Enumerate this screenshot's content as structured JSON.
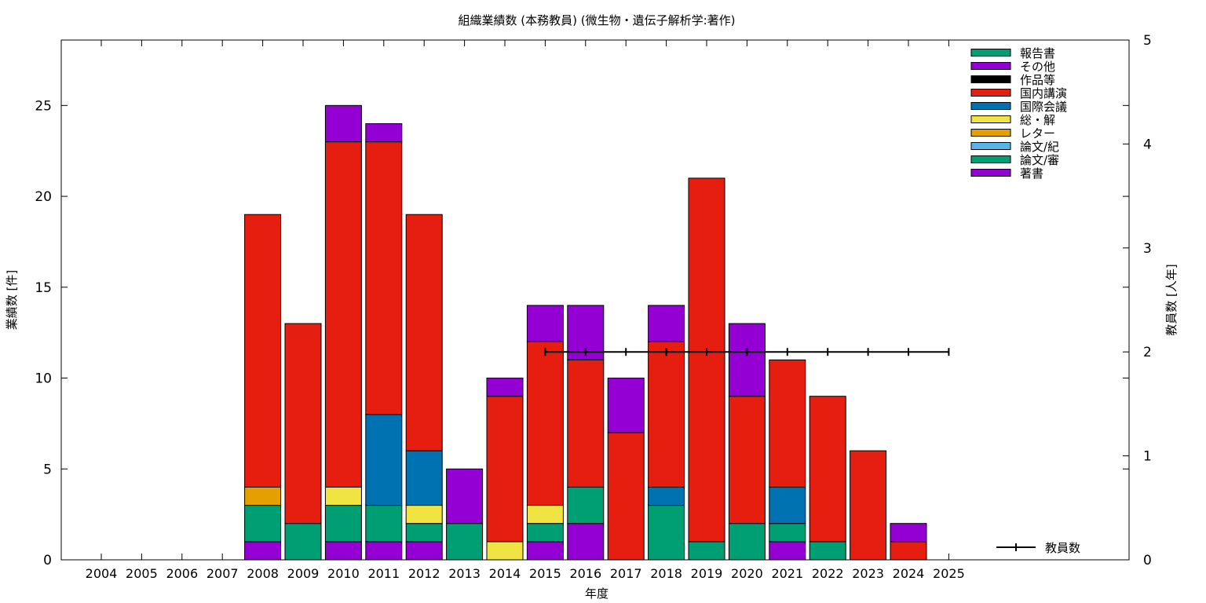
{
  "chart_data": {
    "type": "bar",
    "stacked": true,
    "title": "組織業績数 (本務教員) (微生物・遺伝子解析学:著作)",
    "xlabel": "年度",
    "ylabel": "業績数 [件]",
    "y2label": "教員数 [人年]",
    "ylim": [
      0,
      28.6
    ],
    "y2lim": [
      0,
      5
    ],
    "yticks": [
      0,
      5,
      10,
      15,
      20,
      25
    ],
    "y2ticks": [
      0,
      1,
      2,
      3,
      4,
      5
    ],
    "legend_position": "top-right",
    "categories": [
      "2004",
      "2005",
      "2006",
      "2007",
      "2008",
      "2009",
      "2010",
      "2011",
      "2012",
      "2013",
      "2014",
      "2015",
      "2016",
      "2017",
      "2018",
      "2019",
      "2020",
      "2021",
      "2022",
      "2023",
      "2024",
      "2025"
    ],
    "legend_order": [
      "報告書",
      "その他",
      "作品等",
      "国内講演",
      "国際会議",
      "総・解",
      "レター",
      "論文/紀",
      "論文/審",
      "著書"
    ],
    "series": [
      {
        "name": "著書",
        "color": "#9400d3",
        "values": [
          0,
          0,
          0,
          0,
          1,
          0,
          1,
          1,
          1,
          0,
          0,
          1,
          2,
          0,
          0,
          0,
          0,
          1,
          0,
          0,
          0,
          0
        ]
      },
      {
        "name": "論文/審",
        "color": "#009e73",
        "values": [
          0,
          0,
          0,
          0,
          2,
          2,
          2,
          2,
          1,
          2,
          0,
          1,
          2,
          0,
          3,
          1,
          2,
          1,
          1,
          0,
          0,
          0
        ]
      },
      {
        "name": "論文/紀",
        "color": "#56b4e9",
        "values": [
          0,
          0,
          0,
          0,
          0,
          0,
          0,
          0,
          0,
          0,
          0,
          0,
          0,
          0,
          0,
          0,
          0,
          0,
          0,
          0,
          0,
          0
        ]
      },
      {
        "name": "レター",
        "color": "#e69f00",
        "values": [
          0,
          0,
          0,
          0,
          1,
          0,
          0,
          0,
          0,
          0,
          0,
          0,
          0,
          0,
          0,
          0,
          0,
          0,
          0,
          0,
          0,
          0
        ]
      },
      {
        "name": "総・解",
        "color": "#f0e442",
        "values": [
          0,
          0,
          0,
          0,
          0,
          0,
          1,
          0,
          1,
          0,
          1,
          1,
          0,
          0,
          0,
          0,
          0,
          0,
          0,
          0,
          0,
          0
        ]
      },
      {
        "name": "国際会議",
        "color": "#0072b2",
        "values": [
          0,
          0,
          0,
          0,
          0,
          0,
          0,
          5,
          3,
          0,
          0,
          0,
          0,
          0,
          1,
          0,
          0,
          2,
          0,
          0,
          0,
          0
        ]
      },
      {
        "name": "国内講演",
        "color": "#e51e10",
        "values": [
          0,
          0,
          0,
          0,
          15,
          11,
          19,
          15,
          13,
          0,
          8,
          9,
          7,
          7,
          8,
          20,
          7,
          7,
          8,
          6,
          1,
          0
        ]
      },
      {
        "name": "作品等",
        "color": "#000000",
        "values": [
          0,
          0,
          0,
          0,
          0,
          0,
          0,
          0,
          0,
          0,
          0,
          0,
          0,
          0,
          0,
          0,
          0,
          0,
          0,
          0,
          0,
          0
        ]
      },
      {
        "name": "その他",
        "color": "#9400d3",
        "values": [
          0,
          0,
          0,
          0,
          0,
          0,
          2,
          1,
          0,
          3,
          1,
          2,
          3,
          3,
          2,
          0,
          4,
          0,
          0,
          0,
          1,
          0
        ]
      },
      {
        "name": "報告書",
        "color": "#009e73",
        "values": [
          0,
          0,
          0,
          0,
          0,
          0,
          0,
          0,
          0,
          0,
          0,
          0,
          0,
          0,
          0,
          0,
          0,
          0,
          0,
          0,
          0,
          0
        ]
      }
    ],
    "line_series": {
      "name": "教員数",
      "axis": "y2",
      "color": "#000000",
      "x": [
        "2015",
        "2016",
        "2017",
        "2018",
        "2019",
        "2020",
        "2021",
        "2022",
        "2023",
        "2024",
        "2025"
      ],
      "values": [
        2,
        2,
        2,
        2,
        2,
        2,
        2,
        2,
        2,
        2,
        2
      ]
    }
  }
}
